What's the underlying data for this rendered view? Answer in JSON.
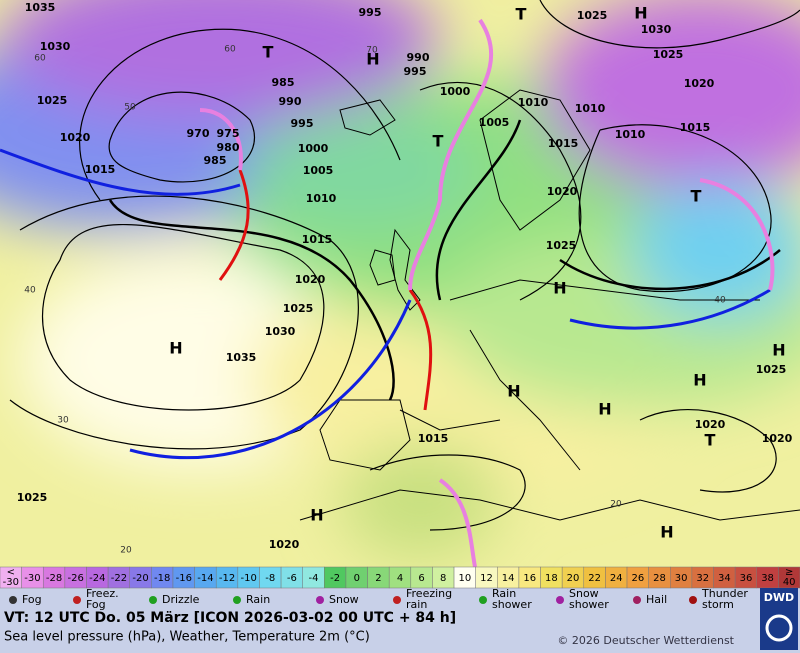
{
  "map": {
    "pressure_labels": [
      "1035",
      "1030",
      "1025",
      "1020",
      "1015",
      "995",
      "990",
      "995",
      "985",
      "990",
      "995",
      "1000",
      "1005",
      "1010",
      "975",
      "970",
      "980",
      "985",
      "1000",
      "1005",
      "1010",
      "1015",
      "1020",
      "1025",
      "1030",
      "1035",
      "1025",
      "1030",
      "1025",
      "1020",
      "1015",
      "1010",
      "1010",
      "1015",
      "1020",
      "1025",
      "1015",
      "1020",
      "1020",
      "1025",
      "1025",
      "1020"
    ],
    "temperature_labels": [
      "60",
      "60",
      "70",
      "50",
      "40",
      "30",
      "20",
      "20",
      "40"
    ],
    "highs": [
      "H",
      "H",
      "H",
      "H",
      "H",
      "H",
      "H",
      "H",
      "H",
      "H"
    ],
    "lows": [
      "T",
      "T",
      "T",
      "T",
      "T"
    ]
  },
  "legend": {
    "scale_low": [
      "<",
      "-30"
    ],
    "scale": [
      -30,
      -28,
      -26,
      -24,
      -22,
      -20,
      -18,
      -16,
      -14,
      -12,
      -10,
      -8,
      -6,
      -4,
      -2,
      0,
      2,
      4,
      6,
      8,
      10,
      12,
      14,
      16,
      18,
      20,
      22,
      24,
      26,
      28,
      30,
      32,
      34,
      36,
      38
    ],
    "scale_high": [
      "≥",
      "40"
    ],
    "weather": [
      [
        "Fog"
      ],
      [
        "Freez.",
        "Fog"
      ],
      [
        "Drizzle"
      ],
      [
        "Rain"
      ],
      [
        "Snow"
      ],
      [
        "Freezing",
        "rain"
      ],
      [
        "Rain",
        "shower"
      ],
      [
        "Snow",
        "shower"
      ],
      [
        "Hail"
      ],
      [
        "Thunder",
        "storm"
      ]
    ]
  },
  "footer": {
    "valid_time": "VT: 12 UTC Do.  05 März [ICON 2026-03-02  00 UTC + 84 h]",
    "description": "Sea level pressure (hPa), Weather, Temperature 2m (°C)",
    "copyright": "© 2026 Deutscher Wetterdienst",
    "logo": "DWD"
  }
}
